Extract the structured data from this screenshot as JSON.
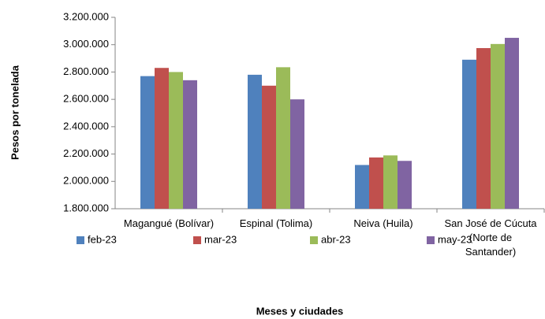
{
  "chart_data": {
    "type": "bar",
    "categories": [
      "Magangué (Bolívar)",
      "Espinal (Tolima)",
      "Neiva (Huila)",
      "San José de Cúcuta (Norte de Santander)"
    ],
    "series": [
      {
        "name": "feb-23",
        "color": "#4f81bd",
        "values": [
          2770000,
          2780000,
          2120000,
          2890000
        ]
      },
      {
        "name": "mar-23",
        "color": "#c0504d",
        "values": [
          2830000,
          2700000,
          2175000,
          2975000
        ]
      },
      {
        "name": "abr-23",
        "color": "#9bbb59",
        "values": [
          2800000,
          2835000,
          2190000,
          3005000
        ]
      },
      {
        "name": "may-23",
        "color": "#8064a2",
        "values": [
          2740000,
          2600000,
          2150000,
          3050000
        ]
      }
    ],
    "ylim": [
      1800000,
      3200000
    ],
    "yticks": [
      {
        "value": 1800000,
        "label": "1.800.000"
      },
      {
        "value": 2000000,
        "label": "2.000.000"
      },
      {
        "value": 2200000,
        "label": "2.200.000"
      },
      {
        "value": 2400000,
        "label": "2.400.000"
      },
      {
        "value": 2600000,
        "label": "2.600.000"
      },
      {
        "value": 2800000,
        "label": "2.800.000"
      },
      {
        "value": 3000000,
        "label": "3.000.000"
      },
      {
        "value": 3200000,
        "label": "3.200.000"
      }
    ],
    "y_label": "Pesos por tonelada",
    "x_label": "Meses y ciudades",
    "grid": false,
    "legend": "bottom"
  }
}
